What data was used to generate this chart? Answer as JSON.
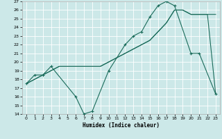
{
  "xlabel": "Humidex (Indice chaleur)",
  "bg_color": "#cce8e8",
  "grid_color": "#ffffff",
  "line_color": "#1a6b5a",
  "xlim": [
    -0.5,
    23.5
  ],
  "ylim": [
    14,
    27
  ],
  "xticks": [
    0,
    1,
    2,
    3,
    4,
    5,
    6,
    7,
    8,
    9,
    10,
    11,
    12,
    13,
    14,
    15,
    16,
    17,
    18,
    19,
    20,
    21,
    22,
    23
  ],
  "yticks": [
    14,
    15,
    16,
    17,
    18,
    19,
    20,
    21,
    22,
    23,
    24,
    25,
    26,
    27
  ],
  "line1_x": [
    0,
    1,
    2,
    3,
    4,
    5,
    6,
    7,
    8,
    9,
    10,
    11,
    12,
    13,
    14,
    15,
    16,
    17,
    18,
    19,
    20,
    21,
    22,
    23
  ],
  "line1_y": [
    17.5,
    18.0,
    18.5,
    19.0,
    19.5,
    19.5,
    19.5,
    19.5,
    19.5,
    19.5,
    20.0,
    20.5,
    21.0,
    21.5,
    22.0,
    22.5,
    23.5,
    24.5,
    26.0,
    26.0,
    25.5,
    25.5,
    25.5,
    25.5
  ],
  "line2_x": [
    0,
    1,
    2,
    3,
    4,
    5,
    6,
    7,
    8,
    9,
    10,
    11,
    12,
    13,
    14,
    15,
    16,
    17,
    18,
    19,
    20,
    21,
    22,
    23
  ],
  "line2_y": [
    17.5,
    18.0,
    18.5,
    19.0,
    19.5,
    19.5,
    19.5,
    19.5,
    19.5,
    19.5,
    20.0,
    20.5,
    21.0,
    21.5,
    22.0,
    22.5,
    23.5,
    24.5,
    26.0,
    26.0,
    25.5,
    25.5,
    25.5,
    16.3
  ],
  "line3_x": [
    0,
    1,
    2,
    3,
    6,
    7,
    8,
    10,
    12,
    13,
    14,
    15,
    16,
    17,
    18,
    20,
    21,
    23
  ],
  "line3_y": [
    17.5,
    18.5,
    18.5,
    19.5,
    16.0,
    14.0,
    14.3,
    19.0,
    22.0,
    23.0,
    23.5,
    25.2,
    26.5,
    27.0,
    26.5,
    21.0,
    21.0,
    16.3
  ]
}
